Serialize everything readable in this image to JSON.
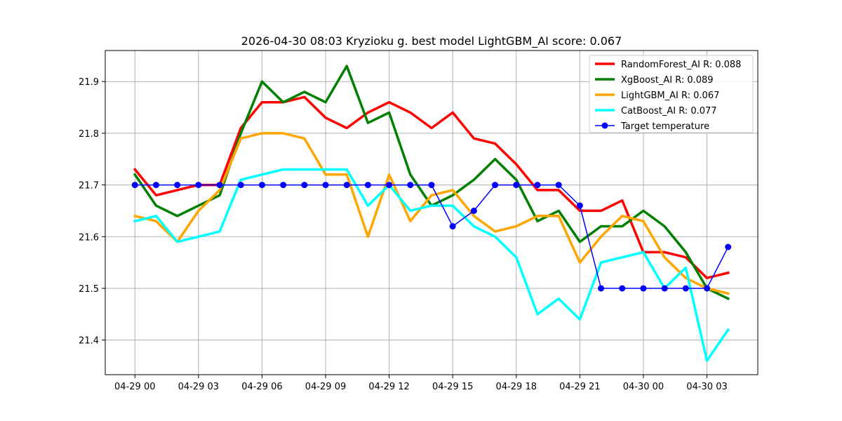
{
  "chart_data": {
    "type": "line",
    "title": "2026-04-30 08:03 Kryzioku g. best model LightGBM_AI score: 0.067",
    "xlabel": "",
    "ylabel": "",
    "grid": true,
    "legend_position": "top-right",
    "x_tick_labels": [
      "04-29 00",
      "04-29 03",
      "04-29 06",
      "04-29 09",
      "04-29 12",
      "04-29 15",
      "04-29 18",
      "04-29 21",
      "04-30 00",
      "04-30 03"
    ],
    "x_tick_hours": [
      0,
      3,
      6,
      9,
      12,
      15,
      18,
      21,
      24,
      27
    ],
    "x_hours": [
      0,
      1,
      2,
      3,
      4,
      5,
      6,
      7,
      8,
      9,
      10,
      11,
      12,
      13,
      14,
      15,
      16,
      17,
      18,
      19,
      20,
      21,
      22,
      23,
      24,
      25,
      26,
      27,
      28
    ],
    "xlim": [
      -1.4,
      29.4
    ],
    "ylim": [
      21.333,
      21.96
    ],
    "y_ticks": [
      21.4,
      21.5,
      21.6,
      21.7,
      21.8,
      21.9
    ],
    "series": [
      {
        "name": "RandomForest_AI R: 0.088",
        "color": "#ff0000",
        "marker": false,
        "values": [
          21.73,
          21.68,
          21.69,
          21.7,
          21.7,
          21.81,
          21.86,
          21.86,
          21.87,
          21.83,
          21.81,
          21.84,
          21.86,
          21.84,
          21.81,
          21.84,
          21.79,
          21.78,
          21.74,
          21.69,
          21.69,
          21.65,
          21.65,
          21.67,
          21.57,
          21.57,
          21.56,
          21.52,
          21.53
        ]
      },
      {
        "name": "XgBoost_AI R: 0.089",
        "color": "#008000",
        "marker": false,
        "values": [
          21.72,
          21.66,
          21.64,
          21.66,
          21.68,
          21.8,
          21.9,
          21.86,
          21.88,
          21.86,
          21.93,
          21.82,
          21.84,
          21.72,
          21.66,
          21.68,
          21.71,
          21.75,
          21.71,
          21.63,
          21.65,
          21.59,
          21.62,
          21.62,
          21.65,
          21.62,
          21.57,
          21.5,
          21.48
        ]
      },
      {
        "name": "LightGBM_AI R: 0.067",
        "color": "#ffa500",
        "marker": false,
        "values": [
          21.64,
          21.63,
          21.59,
          21.65,
          21.69,
          21.79,
          21.8,
          21.8,
          21.79,
          21.72,
          21.72,
          21.6,
          21.72,
          21.63,
          21.68,
          21.69,
          21.64,
          21.61,
          21.62,
          21.64,
          21.64,
          21.55,
          21.6,
          21.64,
          21.63,
          21.56,
          21.52,
          21.5,
          21.49
        ]
      },
      {
        "name": "CatBoost_AI R: 0.077",
        "color": "#00ffff",
        "marker": false,
        "values": [
          21.63,
          21.64,
          21.59,
          21.6,
          21.61,
          21.71,
          21.72,
          21.73,
          21.73,
          21.73,
          21.73,
          21.66,
          21.7,
          21.65,
          21.66,
          21.66,
          21.62,
          21.6,
          21.56,
          21.45,
          21.48,
          21.44,
          21.55,
          21.56,
          21.57,
          21.5,
          21.54,
          21.36,
          21.42
        ]
      },
      {
        "name": "Target temperature",
        "color": "#0000ff",
        "marker": true,
        "values": [
          21.7,
          21.7,
          21.7,
          21.7,
          21.7,
          21.7,
          21.7,
          21.7,
          21.7,
          21.7,
          21.7,
          21.7,
          21.7,
          21.7,
          21.7,
          21.62,
          21.65,
          21.7,
          21.7,
          21.7,
          21.7,
          21.66,
          21.5,
          21.5,
          21.5,
          21.5,
          21.5,
          21.5,
          21.58
        ]
      }
    ]
  }
}
